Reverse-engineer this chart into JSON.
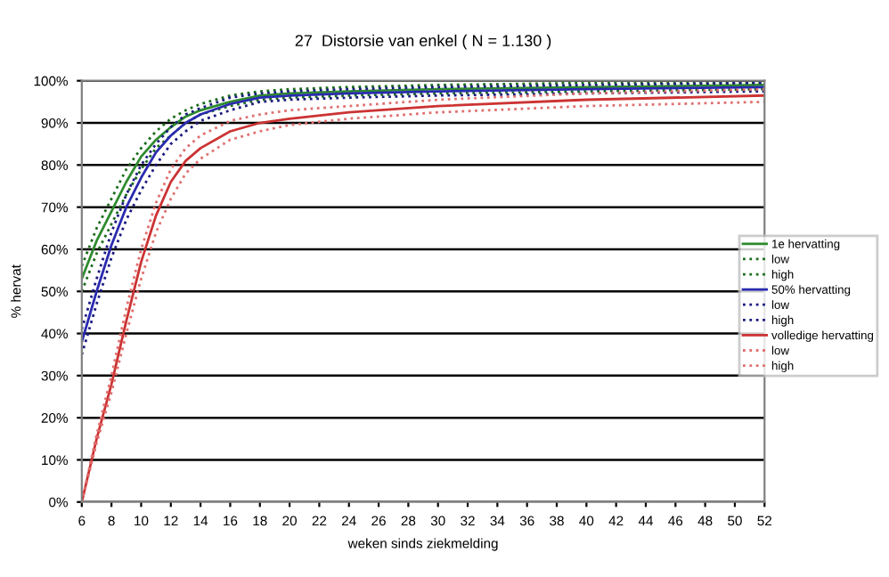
{
  "chart_data": {
    "type": "line",
    "title": "27  Distorsie van enkel ( N = 1.130 )",
    "xlabel": "weken sinds ziekmelding",
    "ylabel": "% hervat",
    "x": [
      6,
      7,
      8,
      9,
      10,
      11,
      12,
      13,
      14,
      16,
      18,
      20,
      24,
      30,
      40,
      52
    ],
    "series": [
      {
        "name": "1e hervatting",
        "color": "#2e8b2e",
        "line_style": "solid",
        "values": [
          53,
          62,
          69,
          76,
          82,
          86,
          89,
          91.5,
          93,
          95,
          96.5,
          97,
          97.5,
          98,
          98.5,
          99
        ]
      },
      {
        "name": "low",
        "color": "#1a6b1a",
        "line_style": "dotted",
        "values": [
          50,
          59,
          66,
          73,
          79,
          84,
          87,
          90,
          92,
          94,
          95.5,
          96,
          96.5,
          97,
          97.5,
          98
        ]
      },
      {
        "name": "high",
        "color": "#1a6b1a",
        "line_style": "dotted",
        "values": [
          56,
          65,
          72,
          79,
          84,
          88,
          91,
          93,
          94.5,
          96.5,
          97.5,
          98,
          98.5,
          99,
          99.5,
          99.5
        ]
      },
      {
        "name": "50% hervatting",
        "color": "#2a2ab0",
        "line_style": "solid",
        "values": [
          38,
          50,
          61,
          70,
          77,
          83,
          87,
          90,
          92,
          94.5,
          96,
          96.5,
          97,
          97.5,
          98,
          98.5
        ]
      },
      {
        "name": "low",
        "color": "#1a1a80",
        "line_style": "dotted",
        "values": [
          35,
          47,
          58,
          67,
          74,
          80,
          85,
          88,
          90.5,
          93,
          95,
          95.5,
          96,
          96.5,
          97,
          97.5
        ]
      },
      {
        "name": "high",
        "color": "#1a1a80",
        "line_style": "dotted",
        "values": [
          41,
          53,
          64,
          73,
          80,
          85,
          89,
          92,
          93.5,
          96,
          97,
          97.5,
          98,
          98.5,
          99,
          99.5
        ]
      },
      {
        "name": "volledige hervatting",
        "color": "#cc3333",
        "line_style": "solid",
        "values": [
          0,
          15,
          28,
          43,
          57,
          68,
          76,
          81,
          84,
          88,
          90,
          91,
          92.5,
          94,
          95.5,
          96.5
        ]
      },
      {
        "name": "low",
        "color": "#e07070",
        "line_style": "dotted",
        "values": [
          0,
          14,
          26,
          40,
          53,
          64,
          72,
          78,
          81.5,
          86,
          88,
          89.5,
          91,
          92.5,
          94,
          95
        ]
      },
      {
        "name": "high",
        "color": "#e07070",
        "line_style": "dotted",
        "values": [
          0,
          16,
          30,
          46,
          60,
          71,
          79,
          84,
          87,
          90.5,
          92,
          93,
          94,
          95.5,
          97,
          98
        ]
      }
    ],
    "xlim": [
      6,
      52
    ],
    "xticks": [
      6,
      8,
      10,
      12,
      14,
      16,
      18,
      20,
      22,
      24,
      26,
      28,
      30,
      32,
      34,
      36,
      38,
      40,
      42,
      44,
      46,
      48,
      50,
      52
    ],
    "ylim": [
      0,
      100
    ],
    "yticks": [
      {
        "value": 0,
        "label": "0%"
      },
      {
        "value": 10,
        "label": "10%"
      },
      {
        "value": 20,
        "label": "20%"
      },
      {
        "value": 30,
        "label": "30%"
      },
      {
        "value": 40,
        "label": "40%"
      },
      {
        "value": 50,
        "label": "50%"
      },
      {
        "value": 60,
        "label": "60%"
      },
      {
        "value": 70,
        "label": "70%"
      },
      {
        "value": 80,
        "label": "80%"
      },
      {
        "value": 90,
        "label": "90%"
      },
      {
        "value": 100,
        "label": "100%"
      }
    ],
    "grid": "y",
    "legend": "right"
  }
}
